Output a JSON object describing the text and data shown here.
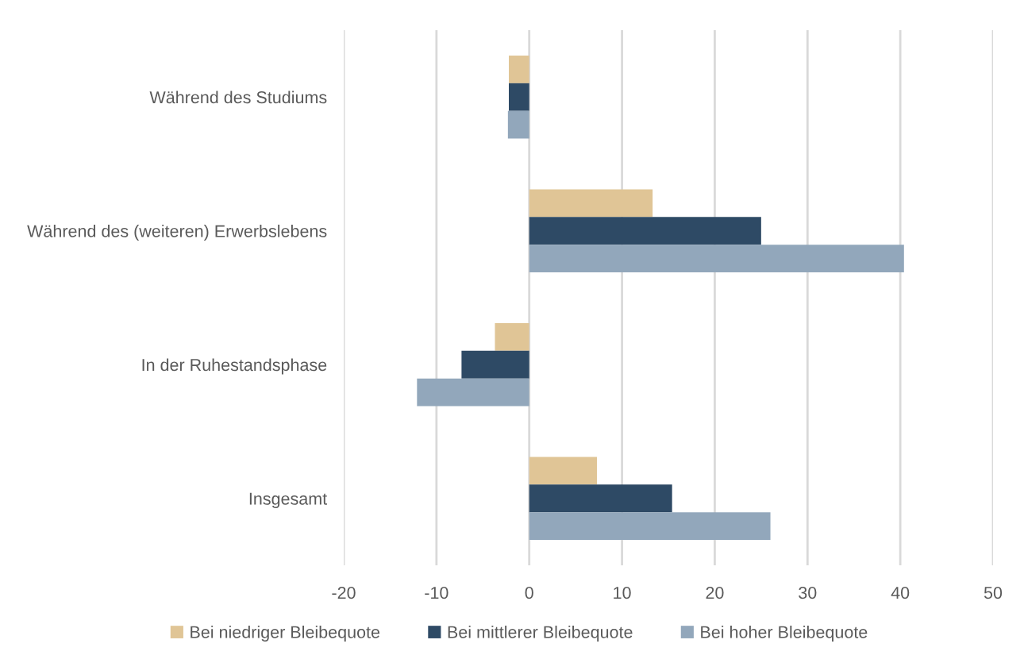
{
  "chart_data": {
    "type": "bar",
    "orientation": "horizontal",
    "categories": [
      "Während des Studiums",
      "Während des (weiteren) Erwerbslebens",
      "In der Ruhestandsphase",
      "Insgesamt"
    ],
    "series": [
      {
        "name": "Bei niedriger Bleibequote",
        "color": "#e0c596",
        "values": [
          -2.2,
          13.3,
          -3.7,
          7.3
        ]
      },
      {
        "name": "Bei mittlerer Bleibequote",
        "color": "#2e4a65",
        "values": [
          -2.2,
          25.0,
          -7.3,
          15.4
        ]
      },
      {
        "name": "Bei hoher Bleibequote",
        "color": "#92a7bb",
        "values": [
          -2.3,
          40.4,
          -12.1,
          26.0
        ]
      }
    ],
    "xlim": [
      -20,
      50
    ],
    "xticks": [
      -20,
      -10,
      0,
      10,
      20,
      30,
      40,
      50
    ],
    "grid": "x",
    "legend": "bottom"
  }
}
